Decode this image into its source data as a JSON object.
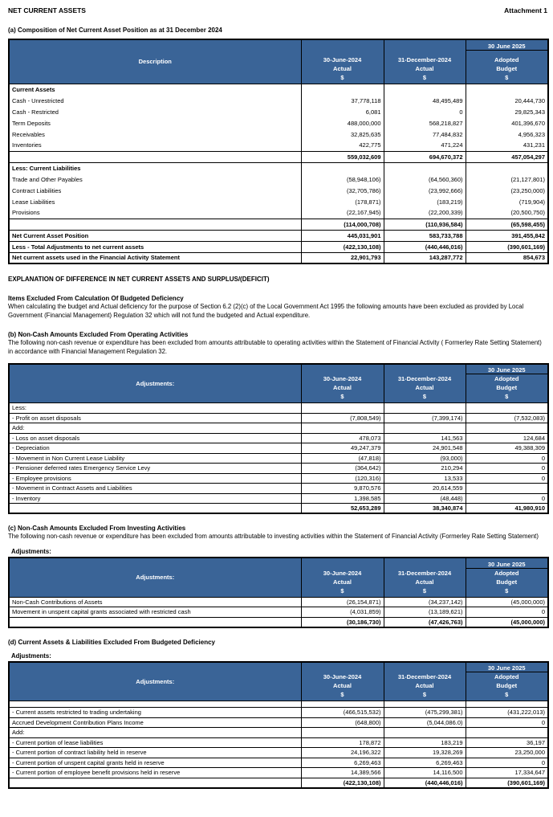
{
  "header": {
    "title": "NET CURRENT ASSETS",
    "attachment": "Attachment 1"
  },
  "colors": {
    "table_header_bg": "#3A6497",
    "table_header_text": "#FFFFFF"
  },
  "columns": {
    "period1": [
      "30-June-2024",
      "Actual",
      "$"
    ],
    "period2": [
      "31-December-2024",
      "Actual",
      "$"
    ],
    "budget_top": "30 June 2025",
    "budget": [
      "Adopted",
      "Budget",
      "$"
    ]
  },
  "section_a": {
    "heading": "(a) Composition of  Net Current Asset Position as at 31 December 2024",
    "col1_header": "Description",
    "rows": [
      {
        "label": "Current Assets",
        "style": "group",
        "v": [
          "",
          "",
          ""
        ]
      },
      {
        "label": "Cash - Unrestricted",
        "v": [
          "37,778,118",
          "48,495,489",
          "20,444,730"
        ]
      },
      {
        "label": "Cash - Restricted",
        "v": [
          "6,081",
          "0",
          "29,825,343"
        ]
      },
      {
        "label": "Term Deposits",
        "v": [
          "488,000,000",
          "568,218,827",
          "401,396,670"
        ]
      },
      {
        "label": "Receivables",
        "v": [
          "32,825,635",
          "77,484,832",
          "4,956,323"
        ]
      },
      {
        "label": "Inventories",
        "v": [
          "422,775",
          "471,224",
          "431,231"
        ]
      },
      {
        "label": "",
        "style": "subtotal",
        "v": [
          "559,032,609",
          "694,670,372",
          "457,054,297"
        ]
      },
      {
        "label": "Less: Current Liabilities",
        "style": "group",
        "v": [
          "",
          "",
          ""
        ]
      },
      {
        "label": "Trade and Other Payables",
        "v": [
          "(58,948,106)",
          "(64,560,360)",
          "(21,127,801)"
        ]
      },
      {
        "label": "Contract Liabilities",
        "v": [
          "(32,705,786)",
          "(23,992,666)",
          "(23,250,000)"
        ]
      },
      {
        "label": "Lease Liabilities",
        "v": [
          "(178,871)",
          "(183,219)",
          "(719,904)"
        ]
      },
      {
        "label": "Provisions",
        "v": [
          "(22,167,945)",
          "(22,200,339)",
          "(20,500,750)"
        ]
      },
      {
        "label": "",
        "style": "subtotal",
        "v": [
          "(114,000,708)",
          "(110,936,584)",
          "(65,598,455)"
        ]
      },
      {
        "label": "Net Current Asset Position",
        "style": "total",
        "v": [
          "445,031,901",
          "583,733,788",
          "391,455,842"
        ]
      },
      {
        "label": "Less - Total Adjustments to net current assets",
        "style": "total",
        "v": [
          "(422,130,108)",
          "(440,446,016)",
          "(390,601,169)"
        ]
      },
      {
        "label": "Net current assets used in the Financial Activity Statement",
        "style": "total",
        "v": [
          "22,901,793",
          "143,287,772",
          "854,673"
        ]
      }
    ]
  },
  "explanation": {
    "heading": "EXPLANATION OF DIFFERENCE IN NET CURRENT ASSETS AND SURPLUS/(DEFICIT)",
    "items_heading": "Items Excluded From Calculation Of Budgeted Deficiency",
    "items_text": "When calculating the budget and Actual deficiency for the purpose of Section 6.2 (2)(c) of the Local Government Act 1995 the following amounts have been excluded as provided by Local Government (Financial Management) Regulation 32 which will not fund the budgeted  and Actual expenditure."
  },
  "section_b": {
    "heading": "(b) Non-Cash Amounts Excluded From Operating Activities",
    "text": "The following non-cash revenue or expenditure has been excluded from amounts attributable to operating activities within the Statement of Financial Activity ( Formerley Rate Setting Statement) in accordance with Financial Management Regulation 32.",
    "col1_header": "Adjustments:",
    "rows": [
      {
        "label": "Less:",
        "v": [
          "",
          "",
          ""
        ]
      },
      {
        "label": "- Profit on asset disposals",
        "v": [
          "(7,808,549)",
          "(7,399,174)",
          "(7,532,083)"
        ]
      },
      {
        "label": "Add:",
        "v": [
          "",
          "",
          ""
        ]
      },
      {
        "label": "-  Loss on asset disposals",
        "v": [
          "478,073",
          "141,563",
          "124,684"
        ]
      },
      {
        "label": "- Depreciation",
        "v": [
          "49,247,379",
          "24,901,548",
          "49,388,309"
        ]
      },
      {
        "label": "- Movement in Non Current Lease Liability",
        "v": [
          "(47,818)",
          "(93,000)",
          "0"
        ]
      },
      {
        "label": "- Pensioner deferred rates Emergency Service Levy",
        "v": [
          "(364,642)",
          "210,294",
          "0"
        ]
      },
      {
        "label": "- Employee provisions",
        "v": [
          "(120,316)",
          "13,533",
          "0"
        ]
      },
      {
        "label": "- Movement in Contract Assets and Liabilities",
        "v": [
          "9,870,576",
          "20,614,559",
          ""
        ]
      },
      {
        "label": "- Inventory",
        "v": [
          "1,398,585",
          "(48,448)",
          "0"
        ]
      },
      {
        "label": "",
        "style": "total",
        "v": [
          "52,653,289",
          "38,340,874",
          "41,980,910"
        ]
      }
    ]
  },
  "section_c": {
    "heading": "(c)  Non-Cash Amounts Excluded From Investing Activities",
    "text": "The following non-cash revenue or expenditure has been excluded from amounts attributable to investing activities within the Statement of Financial Activity (Formerley Rate Setting Statement)",
    "adjustments_label": "Adjustments:",
    "col1_header": "Adjustments:",
    "rows": [
      {
        "label": "Non-Cash Contributions of Assets",
        "v": [
          "(26,154,871)",
          "(34,237,142)",
          "(45,000,000)"
        ]
      },
      {
        "label": "Movement in unspent capital grants associated with restricted cash",
        "v": [
          "(4,031,859)",
          "(13,189,621)",
          "0"
        ]
      },
      {
        "label": "",
        "style": "total",
        "v": [
          "(30,186,730)",
          "(47,426,763)",
          "(45,000,000)"
        ]
      }
    ]
  },
  "section_d": {
    "heading": "(d) Current Assets & Liabilities Excluded From Budgeted Deficiency",
    "adjustments_label": "Adjustments:",
    "col1_header": "Adjustments:",
    "rows": [
      {
        "label": "",
        "style": "blank",
        "v": [
          "",
          "",
          ""
        ]
      },
      {
        "label": "- Current assets restricted to trading undertaking",
        "v": [
          "(466,515,532)",
          "(475,299,381)",
          "(431,222,013)"
        ]
      },
      {
        "label": "Accrued Development Contribution Plans Income",
        "v": [
          "(648,800)",
          "(5,044,086.0)",
          "0"
        ]
      },
      {
        "label": "Add:",
        "v": [
          "",
          "",
          ""
        ]
      },
      {
        "label": "- Current portion of lease liabilities",
        "v": [
          "178,872",
          "183,219",
          "36,197"
        ]
      },
      {
        "label": "- Current portion of contract liability held in reserve",
        "v": [
          "24,196,322",
          "19,328,269",
          "23,250,000"
        ]
      },
      {
        "label": "- Current portion of unspent capital grants held in reserve",
        "v": [
          "6,269,463",
          "6,269,463",
          "0"
        ]
      },
      {
        "label": "- Current portion of employee benefit provisions held in reserve",
        "v": [
          "14,389,566",
          "14,116,500",
          "17,334,647"
        ]
      },
      {
        "label": "",
        "style": "total",
        "v": [
          "(422,130,108)",
          "(440,446,016)",
          "(390,601,169)"
        ]
      }
    ]
  }
}
